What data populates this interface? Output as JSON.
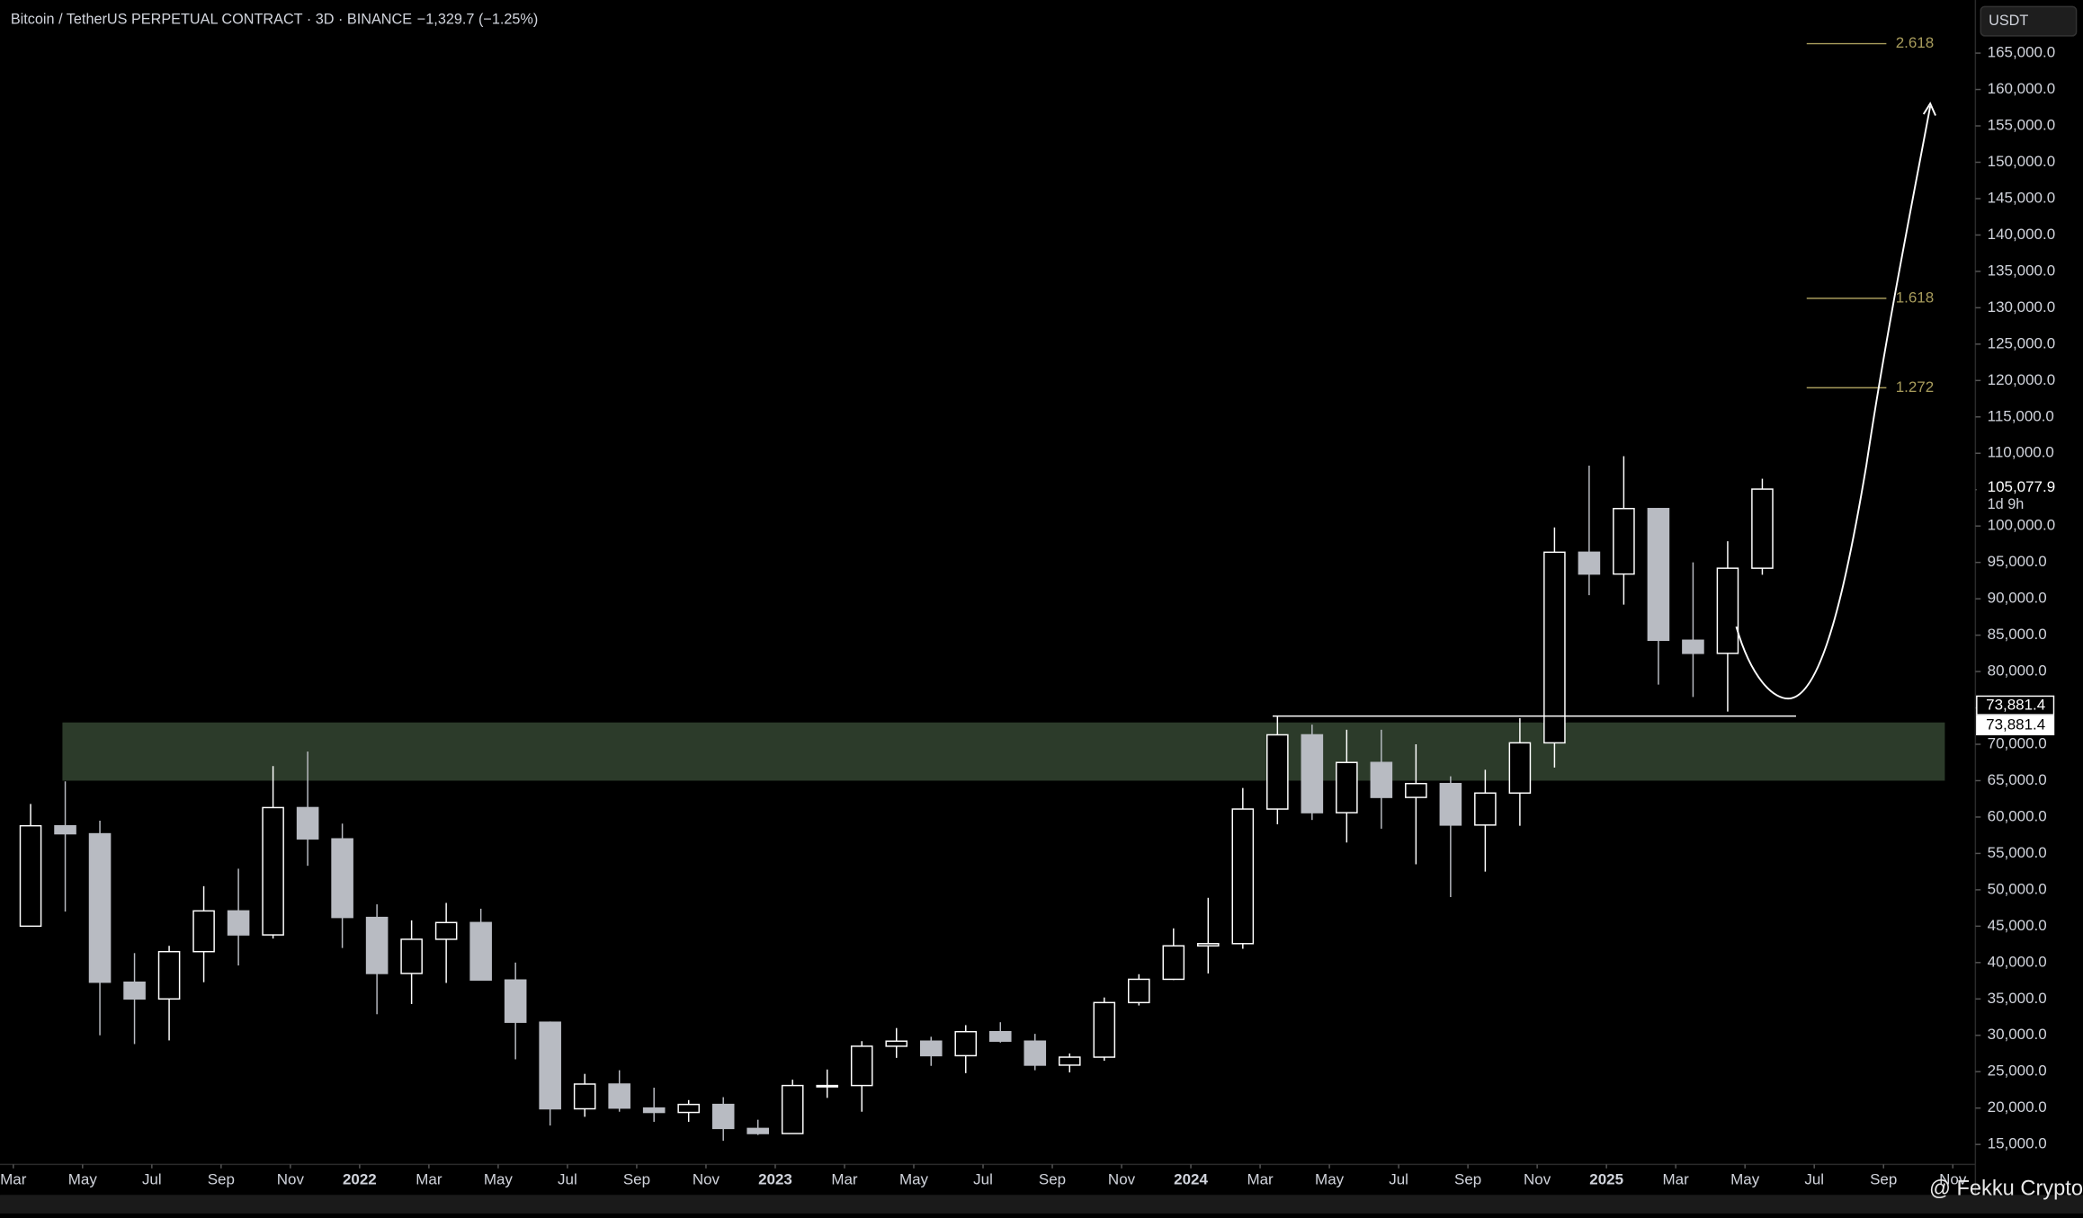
{
  "chart_data": {
    "type": "candlestick",
    "title": "Bitcoin / TetherUS PERPETUAL CONTRACT · 3D · BINANCE",
    "change": "−1,329.7 (−1.25%)",
    "currency": "USDT",
    "watermark": "@ Fekku Crypto",
    "up_color": "#ffffff",
    "down_color": "#b8bbc2",
    "x": [
      "2021-03",
      "2021-04",
      "2021-05",
      "2021-06",
      "2021-07",
      "2021-08",
      "2021-09",
      "2021-10",
      "2021-11",
      "2021-12",
      "2022-01",
      "2022-02",
      "2022-03",
      "2022-04",
      "2022-05",
      "2022-06",
      "2022-07",
      "2022-08",
      "2022-09",
      "2022-10",
      "2022-11",
      "2022-12",
      "2023-01",
      "2023-02",
      "2023-03",
      "2023-04",
      "2023-05",
      "2023-06",
      "2023-07",
      "2023-08",
      "2023-09",
      "2023-10",
      "2023-11",
      "2023-12",
      "2024-01",
      "2024-02",
      "2024-03",
      "2024-04",
      "2024-05",
      "2024-06",
      "2024-07",
      "2024-08",
      "2024-09",
      "2024-10",
      "2024-11",
      "2024-12",
      "2025-01",
      "2025-02",
      "2025-03",
      "2025-04",
      "2025-05"
    ],
    "open": [
      45000,
      58800,
      57700,
      37300,
      35000,
      41500,
      47100,
      43800,
      61300,
      57000,
      46200,
      38500,
      43200,
      45500,
      37600,
      31800,
      19900,
      23300,
      20000,
      19400,
      20500,
      17200,
      16500,
      23100,
      23100,
      28500,
      29200,
      27200,
      30500,
      29200,
      25900,
      27000,
      34500,
      37700,
      42300,
      42600,
      61100,
      71300,
      60600,
      67500,
      62700,
      64600,
      58900,
      63300,
      70200,
      96400,
      93400,
      102400,
      84300,
      82500,
      94200
    ],
    "high": [
      61800,
      64900,
      59500,
      41300,
      42300,
      50500,
      52900,
      67000,
      69000,
      59100,
      48000,
      45800,
      48200,
      47400,
      40000,
      31900,
      24700,
      25200,
      22800,
      21100,
      21500,
      18400,
      23900,
      25300,
      29200,
      31000,
      29800,
      31400,
      31800,
      30200,
      27500,
      35200,
      38400,
      44700,
      48900,
      64000,
      73881.4,
      72700,
      72000,
      72000,
      70000,
      65600,
      66500,
      73600,
      99800,
      108300,
      109600,
      102500,
      95000,
      97900,
      106500
    ],
    "low": [
      45000,
      47000,
      30000,
      28800,
      29300,
      37300,
      39600,
      43300,
      53300,
      42000,
      32900,
      34300,
      37200,
      37600,
      26700,
      17600,
      18800,
      19500,
      18100,
      18100,
      15500,
      16300,
      16500,
      21400,
      19500,
      26900,
      25800,
      24800,
      29000,
      25200,
      24900,
      26500,
      34100,
      37600,
      38500,
      41900,
      59000,
      59600,
      56500,
      58400,
      53500,
      49000,
      52500,
      58800,
      66800,
      90500,
      89200,
      78200,
      76500,
      74500,
      93300
    ],
    "close": [
      58800,
      57700,
      37300,
      35000,
      41500,
      47100,
      43800,
      61300,
      57000,
      46200,
      38500,
      43200,
      45500,
      37600,
      31800,
      19900,
      23300,
      20000,
      19400,
      20500,
      17200,
      16500,
      23100,
      23100,
      28500,
      29200,
      27200,
      30500,
      29200,
      25900,
      27000,
      34500,
      37700,
      42300,
      42600,
      61100,
      71300,
      60600,
      67500,
      62700,
      64600,
      58900,
      63300,
      70200,
      96400,
      93400,
      102400,
      84300,
      82500,
      94200,
      105077.9
    ],
    "xlim": [
      "2021-03",
      "2025-11"
    ],
    "xticks": [
      {
        "value": "2021-03",
        "label": "Mar"
      },
      {
        "value": "2021-05",
        "label": "May"
      },
      {
        "value": "2021-07",
        "label": "Jul"
      },
      {
        "value": "2021-09",
        "label": "Sep"
      },
      {
        "value": "2021-11",
        "label": "Nov"
      },
      {
        "value": "2022-01",
        "label": "2022"
      },
      {
        "value": "2022-03",
        "label": "Mar"
      },
      {
        "value": "2022-05",
        "label": "May"
      },
      {
        "value": "2022-07",
        "label": "Jul"
      },
      {
        "value": "2022-09",
        "label": "Sep"
      },
      {
        "value": "2022-11",
        "label": "Nov"
      },
      {
        "value": "2023-01",
        "label": "2023"
      },
      {
        "value": "2023-03",
        "label": "Mar"
      },
      {
        "value": "2023-05",
        "label": "May"
      },
      {
        "value": "2023-07",
        "label": "Jul"
      },
      {
        "value": "2023-09",
        "label": "Sep"
      },
      {
        "value": "2023-11",
        "label": "Nov"
      },
      {
        "value": "2024-01",
        "label": "2024"
      },
      {
        "value": "2024-03",
        "label": "Mar"
      },
      {
        "value": "2024-05",
        "label": "May"
      },
      {
        "value": "2024-07",
        "label": "Jul"
      },
      {
        "value": "2024-09",
        "label": "Sep"
      },
      {
        "value": "2024-11",
        "label": "Nov"
      },
      {
        "value": "2025-01",
        "label": "2025"
      },
      {
        "value": "2025-03",
        "label": "Mar"
      },
      {
        "value": "2025-05",
        "label": "May"
      },
      {
        "value": "2025-07",
        "label": "Jul"
      },
      {
        "value": "2025-09",
        "label": "Sep"
      },
      {
        "value": "2025-11",
        "label": "Nov"
      }
    ],
    "ylim": [
      12260,
      172300
    ],
    "yticks": [
      {
        "value": 15000,
        "label": "15,000.0"
      },
      {
        "value": 20000,
        "label": "20,000.0"
      },
      {
        "value": 25000,
        "label": "25,000.0"
      },
      {
        "value": 30000,
        "label": "30,000.0"
      },
      {
        "value": 35000,
        "label": "35,000.0"
      },
      {
        "value": 40000,
        "label": "40,000.0"
      },
      {
        "value": 45000,
        "label": "45,000.0"
      },
      {
        "value": 50000,
        "label": "50,000.0"
      },
      {
        "value": 55000,
        "label": "55,000.0"
      },
      {
        "value": 60000,
        "label": "60,000.0"
      },
      {
        "value": 65000,
        "label": "65,000.0"
      },
      {
        "value": 70000,
        "label": "70,000.0"
      },
      {
        "value": 75000,
        "label": "75,000.0"
      },
      {
        "value": 80000,
        "label": "80,000.0"
      },
      {
        "value": 85000,
        "label": "85,000.0"
      },
      {
        "value": 90000,
        "label": "90,000.0"
      },
      {
        "value": 95000,
        "label": "95,000.0"
      },
      {
        "value": 100000,
        "label": "100,000.0"
      },
      {
        "value": 105000,
        "label": "105,000.0"
      },
      {
        "value": 110000,
        "label": "110,000.0"
      },
      {
        "value": 115000,
        "label": "115,000.0"
      },
      {
        "value": 120000,
        "label": "120,000.0"
      },
      {
        "value": 125000,
        "label": "125,000.0"
      },
      {
        "value": 130000,
        "label": "130,000.0"
      },
      {
        "value": 135000,
        "label": "135,000.0"
      },
      {
        "value": 140000,
        "label": "140,000.0"
      },
      {
        "value": 145000,
        "label": "145,000.0"
      },
      {
        "value": 150000,
        "label": "150,000.0"
      },
      {
        "value": 155000,
        "label": "155,000.0"
      },
      {
        "value": 160000,
        "label": "160,000.0"
      },
      {
        "value": 165000,
        "label": "165,000.0"
      }
    ],
    "zone": {
      "low": 65000,
      "high": 73000,
      "color": "#2c3b2a"
    },
    "level": {
      "value": 73881.4,
      "label": "73,881.4"
    },
    "last_price": {
      "value": 105077.9,
      "label": "105,077.9",
      "countdown": "1d 9h"
    },
    "fib_levels": [
      {
        "value": 166300,
        "label": "2.618"
      },
      {
        "value": 131300,
        "label": "1.618"
      },
      {
        "value": 119000,
        "label": "1.272"
      }
    ],
    "fib_color": "#a89c5c"
  }
}
